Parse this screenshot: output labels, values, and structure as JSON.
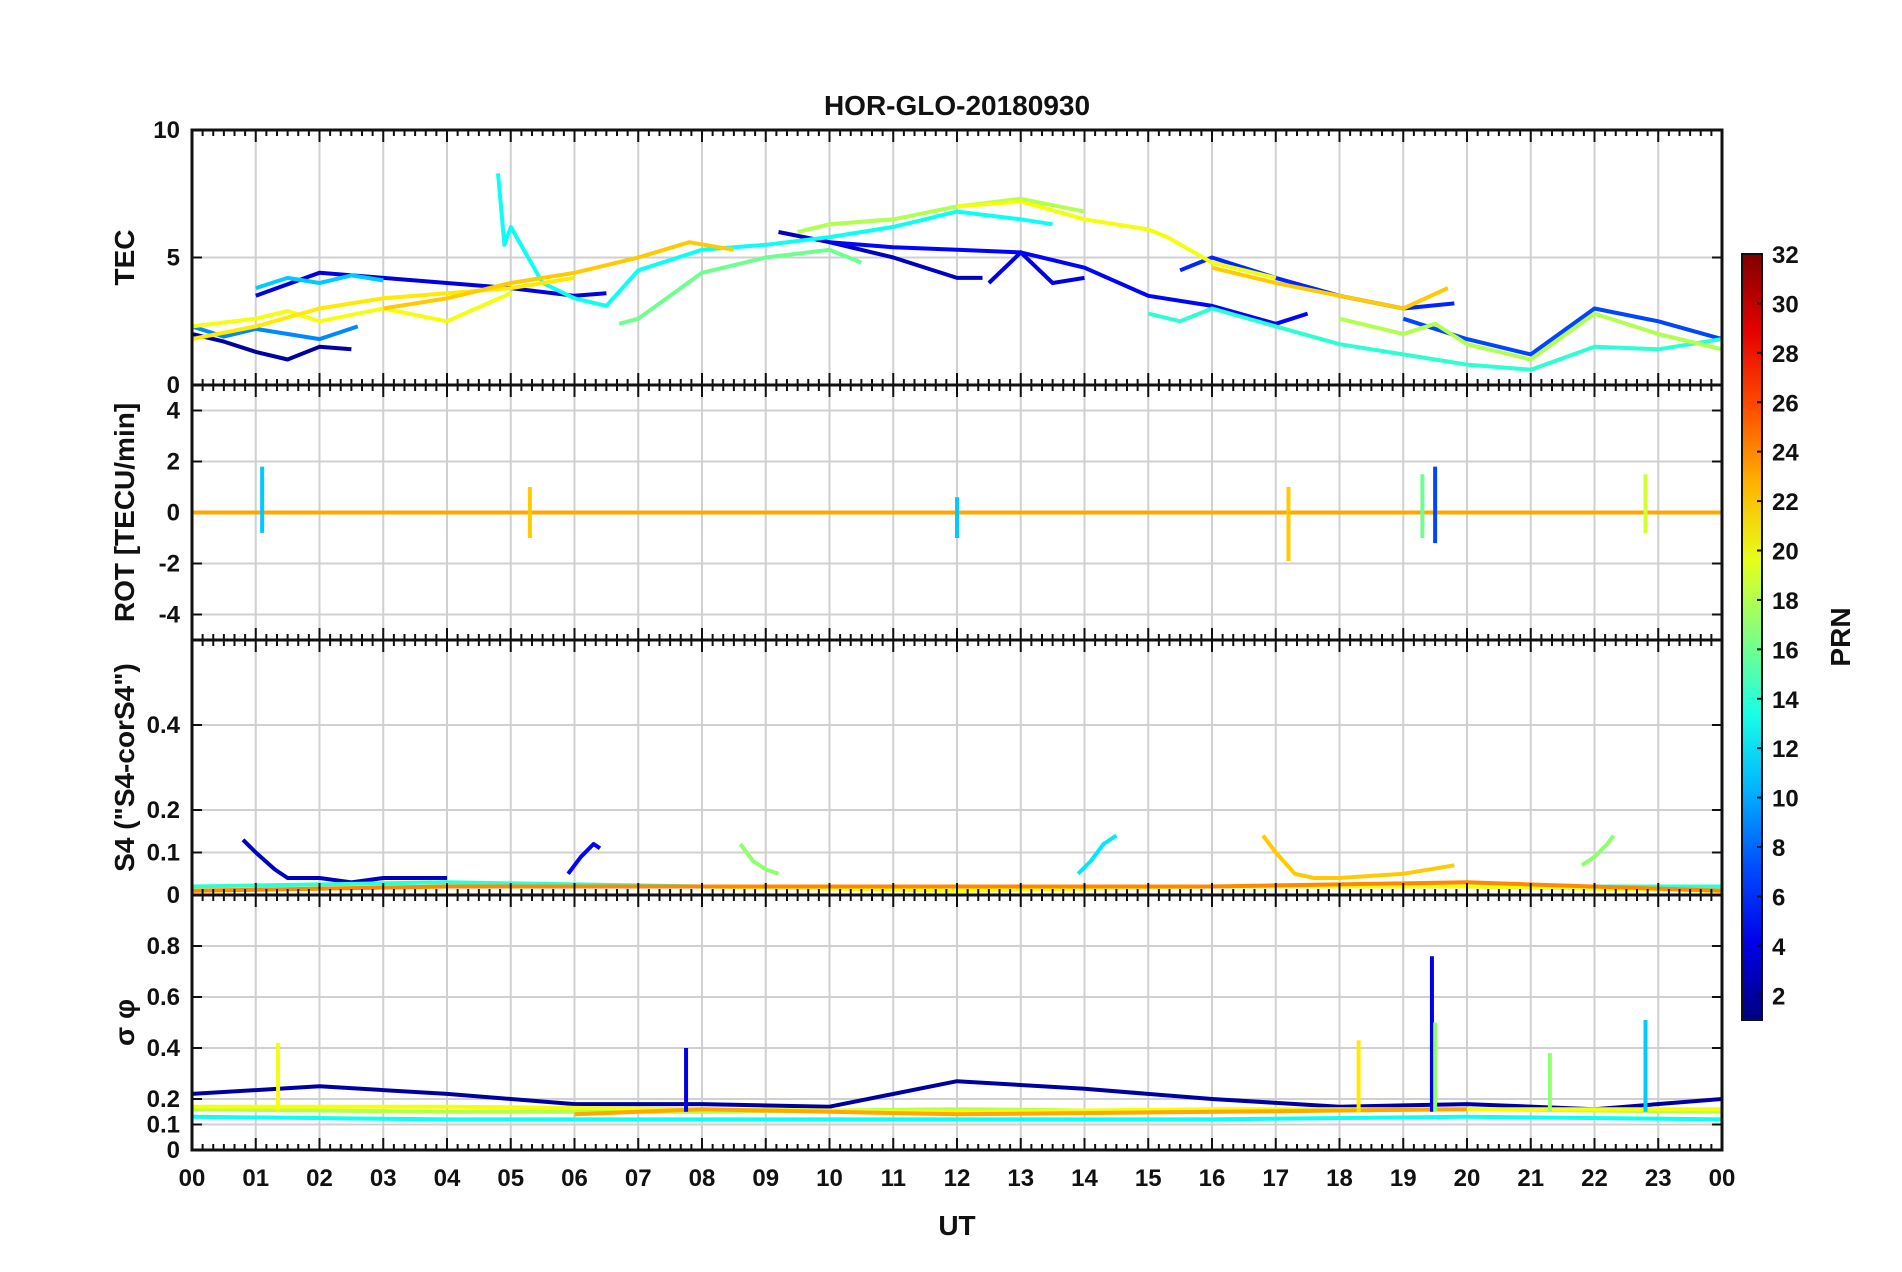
{
  "chart_data": {
    "type": "line",
    "title": "HOR-GLO-20180930",
    "xlabel": "UT",
    "x_tick_labels": [
      "00",
      "01",
      "02",
      "03",
      "04",
      "05",
      "06",
      "07",
      "08",
      "09",
      "10",
      "11",
      "12",
      "13",
      "14",
      "15",
      "16",
      "17",
      "18",
      "19",
      "20",
      "21",
      "22",
      "23",
      "00"
    ],
    "xlim": [
      0,
      24
    ],
    "grid": true,
    "colorbar": {
      "label": "PRN",
      "range": [
        1,
        32
      ],
      "colormap": "jet",
      "tick_labels": [
        "2",
        "4",
        "6",
        "8",
        "10",
        "12",
        "14",
        "16",
        "18",
        "20",
        "22",
        "24",
        "26",
        "28",
        "30",
        "32"
      ]
    },
    "panels": [
      {
        "ylabel": "TEC",
        "ylim": [
          0,
          10
        ],
        "y_tick_labels": [
          "0",
          "5",
          "10"
        ],
        "series": [
          {
            "prn": 2,
            "x": [
              0,
              0.5,
              1,
              1.5,
              2,
              2.5
            ],
            "y": [
              2.0,
              1.7,
              1.3,
              1.0,
              1.5,
              1.4
            ]
          },
          {
            "prn": 4,
            "x": [
              1,
              2,
              3,
              4,
              5,
              6,
              6.5
            ],
            "y": [
              3.5,
              4.4,
              4.2,
              4.0,
              3.8,
              3.5,
              3.6
            ]
          },
          {
            "prn": 3,
            "x": [
              9.2,
              10,
              11,
              12,
              12.4
            ],
            "y": [
              6.0,
              5.6,
              5.0,
              4.2,
              4.2
            ]
          },
          {
            "prn": 4,
            "x": [
              12.5,
              13,
              13.5,
              14
            ],
            "y": [
              4.0,
              5.2,
              4.0,
              4.2
            ]
          },
          {
            "prn": 5,
            "x": [
              10,
              11,
              12,
              13,
              14,
              15,
              16,
              17,
              17.5
            ],
            "y": [
              5.6,
              5.4,
              5.3,
              5.2,
              4.6,
              3.5,
              3.1,
              2.4,
              2.8
            ]
          },
          {
            "prn": 6,
            "x": [
              15.5,
              16,
              17,
              18,
              19,
              19.8
            ],
            "y": [
              4.5,
              5.0,
              4.2,
              3.5,
              3.0,
              3.2
            ]
          },
          {
            "prn": 7,
            "x": [
              19,
              20,
              21,
              22,
              23,
              24
            ],
            "y": [
              2.6,
              1.8,
              1.2,
              3.0,
              2.5,
              1.8
            ]
          },
          {
            "prn": 9,
            "x": [
              0,
              0.5,
              1,
              2,
              2.6
            ],
            "y": [
              2.3,
              1.9,
              2.2,
              1.8,
              2.3
            ]
          },
          {
            "prn": 11,
            "x": [
              1,
              1.5,
              2,
              2.5,
              3
            ],
            "y": [
              3.8,
              4.2,
              4.0,
              4.3,
              4.1
            ]
          },
          {
            "prn": 13,
            "x": [
              4.8,
              4.9,
              5,
              5.5,
              6,
              6.5,
              7,
              8,
              9,
              10,
              11,
              12,
              13,
              13.5
            ],
            "y": [
              8.3,
              5.5,
              6.2,
              4.0,
              3.4,
              3.1,
              4.5,
              5.3,
              5.5,
              5.8,
              6.2,
              6.8,
              6.5,
              6.3
            ]
          },
          {
            "prn": 14,
            "x": [
              15,
              15.5,
              16,
              17,
              18,
              19,
              20,
              21,
              22,
              23,
              24
            ],
            "y": [
              2.8,
              2.5,
              3.0,
              2.3,
              1.6,
              1.2,
              0.8,
              0.6,
              1.5,
              1.4,
              1.8
            ]
          },
          {
            "prn": 16,
            "x": [
              6.7,
              7,
              8,
              9,
              10,
              10.5
            ],
            "y": [
              2.4,
              2.6,
              4.4,
              5.0,
              5.3,
              4.8
            ]
          },
          {
            "prn": 18,
            "x": [
              9.5,
              10,
              11,
              12,
              13,
              14
            ],
            "y": [
              6.0,
              6.3,
              6.5,
              7.0,
              7.3,
              6.8
            ]
          },
          {
            "prn": 18,
            "x": [
              18,
              19,
              19.5,
              20,
              21,
              22,
              23,
              24
            ],
            "y": [
              2.6,
              2.0,
              2.4,
              1.6,
              1.0,
              2.8,
              2.0,
              1.4
            ]
          },
          {
            "prn": 20,
            "x": [
              0,
              1,
              1.5,
              2,
              3,
              4,
              5
            ],
            "y": [
              2.3,
              2.6,
              2.9,
              2.5,
              3.0,
              2.5,
              3.6
            ]
          },
          {
            "prn": 20,
            "x": [
              12,
              13,
              14,
              15,
              15.3,
              16,
              17
            ],
            "y": [
              7.0,
              7.2,
              6.5,
              6.1,
              5.8,
              4.8,
              4.2
            ]
          },
          {
            "prn": 21,
            "x": [
              0,
              1,
              2,
              3,
              4,
              5,
              6
            ],
            "y": [
              1.8,
              2.3,
              3.0,
              3.4,
              3.6,
              3.8,
              4.2
            ]
          },
          {
            "prn": 22,
            "x": [
              3,
              4,
              5,
              6,
              7,
              7.8,
              8.5
            ],
            "y": [
              3.0,
              3.4,
              4.0,
              4.4,
              5.0,
              5.6,
              5.3
            ]
          },
          {
            "prn": 22,
            "x": [
              16,
              17,
              18,
              19,
              19.7
            ],
            "y": [
              4.6,
              4.0,
              3.5,
              3.0,
              3.8
            ]
          }
        ]
      },
      {
        "ylabel": "ROT [TECU/min]",
        "ylim": [
          -5,
          5
        ],
        "y_tick_labels": [
          "-4",
          "-2",
          "0",
          "2",
          "4"
        ],
        "series": [
          {
            "prn": 3,
            "x": [
              0,
              4,
              8,
              12,
              16,
              20,
              24
            ],
            "y": [
              0,
              0,
              0,
              0,
              0,
              0,
              0
            ]
          },
          {
            "prn": 10,
            "x": [
              0,
              4,
              8,
              12,
              16,
              20,
              24
            ],
            "y": [
              0,
              0,
              0,
              0,
              0,
              0,
              0
            ]
          },
          {
            "prn": 16,
            "x": [
              0,
              4,
              8,
              12,
              16,
              20,
              24
            ],
            "y": [
              0,
              0,
              0,
              0,
              0,
              0,
              0
            ]
          },
          {
            "prn": 20,
            "x": [
              0,
              4,
              8,
              12,
              16,
              20,
              24
            ],
            "y": [
              0,
              0,
              0,
              0,
              0,
              0,
              0
            ]
          },
          {
            "prn": 23,
            "x": [
              0,
              4,
              8,
              12,
              16,
              20,
              24
            ],
            "y": [
              0,
              0,
              0,
              0,
              0,
              0,
              0
            ]
          }
        ],
        "spikes": [
          {
            "prn": 11,
            "x": 1.1,
            "y": [
              1.8,
              -0.8
            ]
          },
          {
            "prn": 22,
            "x": 5.3,
            "y": [
              1.0,
              -1.0
            ]
          },
          {
            "prn": 11,
            "x": 12.0,
            "y": [
              0.6,
              -1.0
            ]
          },
          {
            "prn": 22,
            "x": 17.2,
            "y": [
              1.0,
              -1.9
            ]
          },
          {
            "prn": 7,
            "x": 19.5,
            "y": [
              1.8,
              -1.2
            ]
          },
          {
            "prn": 16,
            "x": 19.3,
            "y": [
              1.5,
              -1.0
            ]
          },
          {
            "prn": 19,
            "x": 22.8,
            "y": [
              1.5,
              -0.8
            ]
          }
        ]
      },
      {
        "ylabel": "S4 (\"S4-corS4\")",
        "ylim": [
          0,
          0.6
        ],
        "y_tick_labels": [
          "0",
          "0.1",
          "0.2",
          "0.4"
        ],
        "y_tick_values": [
          0,
          0.1,
          0.2,
          0.4
        ],
        "series": [
          {
            "prn": 3,
            "x": [
              0.8,
              1.0,
              1.3,
              1.5,
              2.0,
              2.5,
              3.0,
              3.5,
              4.0
            ],
            "y": [
              0.13,
              0.1,
              0.06,
              0.04,
              0.04,
              0.03,
              0.04,
              0.04,
              0.04
            ]
          },
          {
            "prn": 5,
            "x": [
              5.9,
              6.1,
              6.3,
              6.4
            ],
            "y": [
              0.05,
              0.09,
              0.12,
              0.11
            ]
          },
          {
            "prn": 12,
            "x": [
              13.9,
              14.1,
              14.3,
              14.5
            ],
            "y": [
              0.05,
              0.08,
              0.12,
              0.14
            ]
          },
          {
            "prn": 22,
            "x": [
              16.8,
              17.0,
              17.3,
              17.6,
              18.0,
              19.0,
              19.8
            ],
            "y": [
              0.14,
              0.1,
              0.05,
              0.04,
              0.04,
              0.05,
              0.07
            ]
          },
          {
            "prn": 17,
            "x": [
              21.8,
              22.0,
              22.2,
              22.3
            ],
            "y": [
              0.07,
              0.09,
              0.12,
              0.14
            ]
          },
          {
            "prn": 17,
            "x": [
              8.6,
              8.8,
              9.0,
              9.2
            ],
            "y": [
              0.12,
              0.08,
              0.06,
              0.05
            ]
          },
          {
            "prn": 14,
            "x": [
              0,
              4,
              8,
              12,
              16,
              20,
              24
            ],
            "y": [
              0.02,
              0.03,
              0.02,
              0.02,
              0.02,
              0.02,
              0.02
            ]
          },
          {
            "prn": 20,
            "x": [
              0,
              4,
              8,
              12,
              16,
              20,
              24
            ],
            "y": [
              0.01,
              0.02,
              0.02,
              0.01,
              0.02,
              0.02,
              0.01
            ]
          },
          {
            "prn": 24,
            "x": [
              0,
              4,
              8,
              12,
              16,
              20,
              24
            ],
            "y": [
              0.01,
              0.02,
              0.02,
              0.02,
              0.02,
              0.03,
              0.01
            ]
          }
        ]
      },
      {
        "ylabel": "σ φ",
        "ylim": [
          0,
          1
        ],
        "y_tick_labels": [
          "0",
          "0.1",
          "0.2",
          "0.4",
          "0.6",
          "0.8"
        ],
        "y_tick_values": [
          0,
          0.1,
          0.2,
          0.4,
          0.6,
          0.8
        ],
        "series": [
          {
            "prn": 2,
            "x": [
              0,
              2,
              4,
              6,
              8,
              10,
              12,
              14,
              16,
              18,
              20,
              22,
              24
            ],
            "y": [
              0.22,
              0.25,
              0.22,
              0.18,
              0.18,
              0.17,
              0.27,
              0.24,
              0.2,
              0.17,
              0.18,
              0.16,
              0.2
            ]
          },
          {
            "prn": 13,
            "x": [
              0,
              4,
              8,
              12,
              16,
              20,
              24
            ],
            "y": [
              0.13,
              0.12,
              0.12,
              0.12,
              0.12,
              0.13,
              0.12
            ]
          },
          {
            "prn": 18,
            "x": [
              0,
              4,
              8,
              12,
              16,
              20,
              24
            ],
            "y": [
              0.16,
              0.15,
              0.15,
              0.16,
              0.15,
              0.16,
              0.15
            ]
          },
          {
            "prn": 20,
            "x": [
              0,
              4,
              8,
              12,
              16,
              20,
              24
            ],
            "y": [
              0.17,
              0.17,
              0.16,
              0.15,
              0.16,
              0.16,
              0.16
            ]
          },
          {
            "prn": 23,
            "x": [
              6,
              8,
              10,
              12,
              16,
              20
            ],
            "y": [
              0.14,
              0.16,
              0.15,
              0.14,
              0.15,
              0.16
            ]
          }
        ],
        "spikes": [
          {
            "prn": 4,
            "x": 19.45,
            "y": [
              0.76,
              0.15
            ]
          },
          {
            "prn": 17,
            "x": 19.5,
            "y": [
              0.5,
              0.15
            ]
          },
          {
            "prn": 11,
            "x": 22.8,
            "y": [
              0.51,
              0.15
            ]
          },
          {
            "prn": 21,
            "x": 18.3,
            "y": [
              0.43,
              0.15
            ]
          },
          {
            "prn": 17,
            "x": 21.3,
            "y": [
              0.38,
              0.15
            ]
          },
          {
            "prn": 4,
            "x": 7.75,
            "y": [
              0.4,
              0.15
            ]
          },
          {
            "prn": 20,
            "x": 1.35,
            "y": [
              0.42,
              0.15
            ]
          }
        ]
      }
    ]
  }
}
